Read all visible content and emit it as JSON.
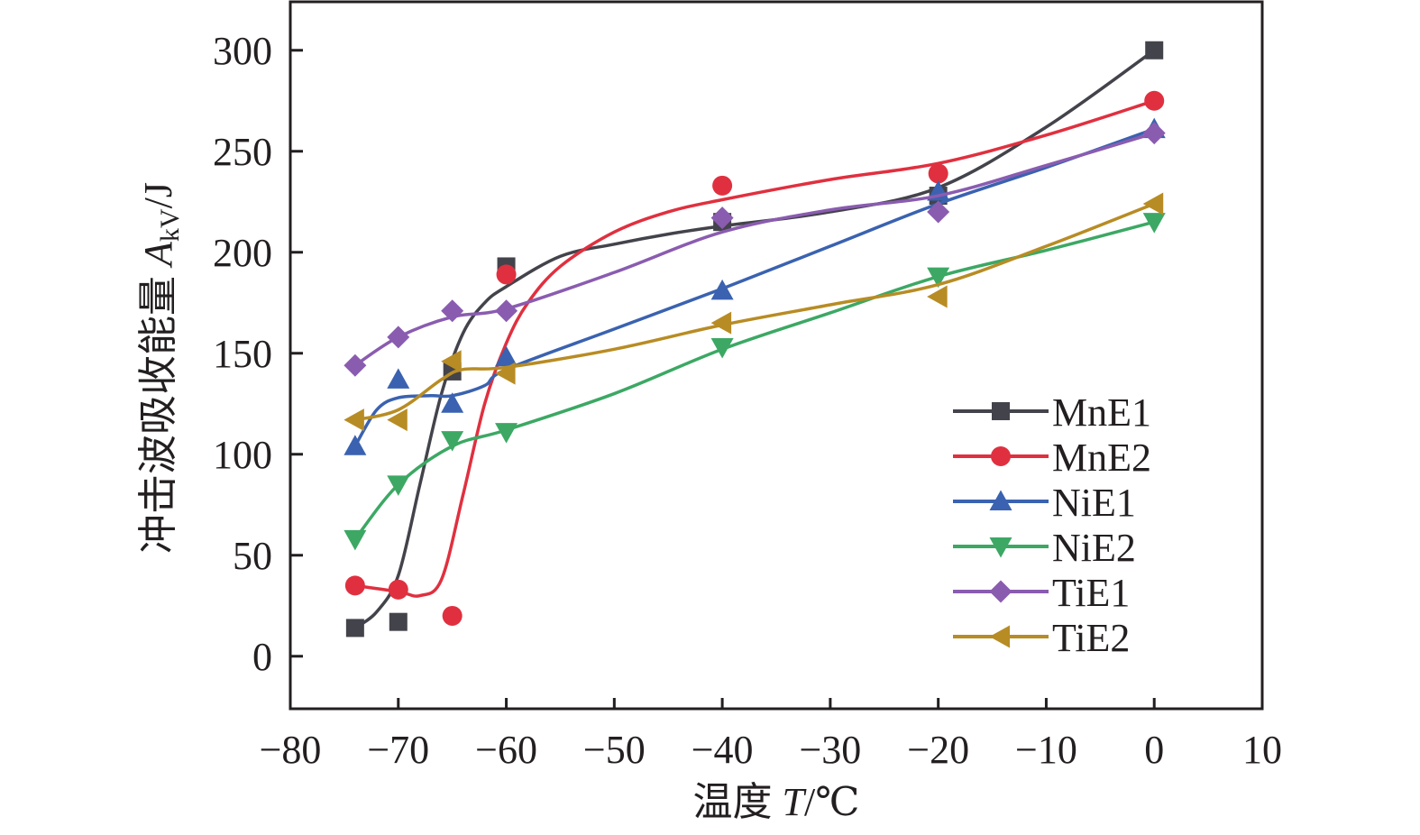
{
  "chart_data": {
    "type": "line",
    "title": "",
    "xlabel": "温度 T/℃",
    "xlabel_parts": {
      "prefix": "温度 ",
      "var": "T",
      "unit": "/℃"
    },
    "ylabel": "冲击波吸收能量 Akv/J",
    "ylabel_parts": {
      "prefix": "冲击波吸收能量 ",
      "var": "A",
      "sub": "kV",
      "unit": "/J"
    },
    "xlim": [
      -80,
      10
    ],
    "ylim": [
      -26,
      324
    ],
    "xticks": [
      -80,
      -70,
      -60,
      -50,
      -40,
      -30,
      -20,
      -10,
      0,
      10
    ],
    "xtick_labels": [
      "−80",
      "−70",
      "−60",
      "−50",
      "−40",
      "−30",
      "−20",
      "−10",
      "0",
      "10"
    ],
    "yticks": [
      0,
      50,
      100,
      150,
      200,
      250,
      300
    ],
    "ytick_labels": [
      "0",
      "50",
      "100",
      "150",
      "200",
      "250",
      "300"
    ],
    "grid": false,
    "legend_position": "bottom-right",
    "x": [
      -74,
      -70,
      -65,
      -60,
      -40,
      -20,
      0
    ],
    "series": [
      {
        "name": "MnE1",
        "color": "#43434b",
        "marker": "square",
        "values": [
          14,
          17,
          141,
          193,
          215,
          228,
          300
        ],
        "fit": [
          [
            -74,
            14
          ],
          [
            -72,
            22
          ],
          [
            -70,
            40
          ],
          [
            -68,
            85
          ],
          [
            -66,
            130
          ],
          [
            -64,
            160
          ],
          [
            -62,
            175
          ],
          [
            -60,
            183
          ],
          [
            -55,
            198
          ],
          [
            -50,
            204
          ],
          [
            -45,
            209
          ],
          [
            -40,
            213
          ],
          [
            -30,
            220
          ],
          [
            -20,
            232
          ],
          [
            -10,
            262
          ],
          [
            0,
            300
          ]
        ]
      },
      {
        "name": "MnE2",
        "color": "#e0303f",
        "marker": "circle",
        "values": [
          35,
          33,
          20,
          189,
          233,
          239,
          275
        ],
        "fit": [
          [
            -74,
            35
          ],
          [
            -70,
            32
          ],
          [
            -68,
            30
          ],
          [
            -66,
            38
          ],
          [
            -64,
            80
          ],
          [
            -62,
            125
          ],
          [
            -60,
            155
          ],
          [
            -58,
            175
          ],
          [
            -55,
            193
          ],
          [
            -50,
            210
          ],
          [
            -45,
            220
          ],
          [
            -40,
            226
          ],
          [
            -30,
            236
          ],
          [
            -20,
            244
          ],
          [
            -10,
            258
          ],
          [
            0,
            275
          ]
        ]
      },
      {
        "name": "NiE1",
        "color": "#3a62b0",
        "marker": "triangle-up",
        "values": [
          104,
          137,
          125,
          148,
          181,
          230,
          261
        ],
        "fit": [
          [
            -74,
            104
          ],
          [
            -72,
            122
          ],
          [
            -70,
            128
          ],
          [
            -67,
            129
          ],
          [
            -65,
            129
          ],
          [
            -62,
            134
          ],
          [
            -60,
            142
          ],
          [
            -50,
            162
          ],
          [
            -40,
            182
          ],
          [
            -30,
            203
          ],
          [
            -20,
            224
          ],
          [
            -10,
            242
          ],
          [
            0,
            261
          ]
        ]
      },
      {
        "name": "NiE2",
        "color": "#3ca864",
        "marker": "triangle-down",
        "values": [
          58,
          85,
          107,
          111,
          153,
          188,
          215
        ],
        "fit": [
          [
            -74,
            58
          ],
          [
            -70,
            85
          ],
          [
            -65,
            104
          ],
          [
            -60,
            112
          ],
          [
            -50,
            130
          ],
          [
            -40,
            152
          ],
          [
            -30,
            170
          ],
          [
            -20,
            188
          ],
          [
            -10,
            201
          ],
          [
            0,
            215
          ]
        ]
      },
      {
        "name": "TiE1",
        "color": "#8a5cb0",
        "marker": "diamond",
        "values": [
          144,
          158,
          171,
          171,
          217,
          220,
          259
        ],
        "fit": [
          [
            -74,
            144
          ],
          [
            -70,
            158
          ],
          [
            -65,
            168
          ],
          [
            -60,
            172
          ],
          [
            -50,
            190
          ],
          [
            -40,
            210
          ],
          [
            -30,
            221
          ],
          [
            -20,
            228
          ],
          [
            -10,
            243
          ],
          [
            0,
            259
          ]
        ]
      },
      {
        "name": "TiE2",
        "color": "#b88c24",
        "marker": "triangle-left",
        "values": [
          117,
          117,
          146,
          140,
          165,
          178,
          224
        ],
        "fit": [
          [
            -74,
            117
          ],
          [
            -70,
            122
          ],
          [
            -66,
            137
          ],
          [
            -64,
            142
          ],
          [
            -60,
            143
          ],
          [
            -50,
            152
          ],
          [
            -40,
            164
          ],
          [
            -30,
            174
          ],
          [
            -20,
            184
          ],
          [
            -10,
            203
          ],
          [
            0,
            224
          ]
        ]
      }
    ]
  }
}
